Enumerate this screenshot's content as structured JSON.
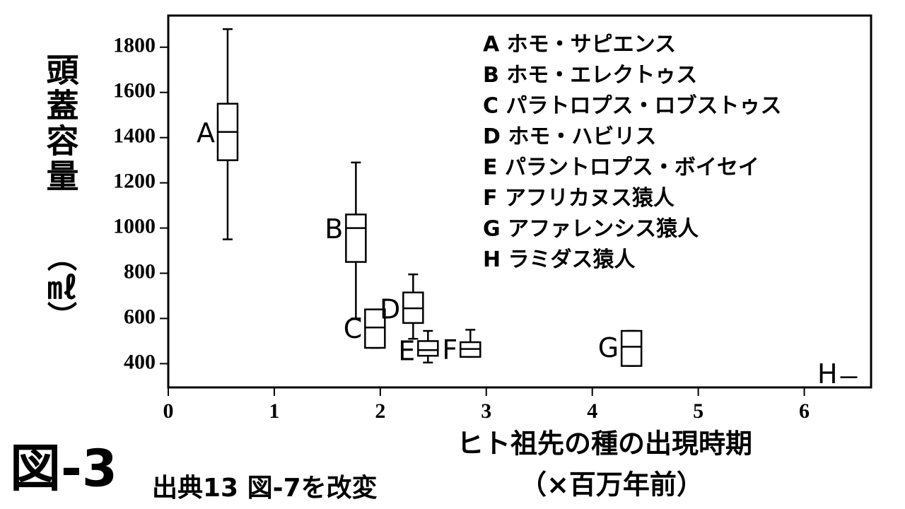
{
  "chart_data": {
    "type": "box",
    "ylabel": "頭蓋容量",
    "ylabel_unit": "（㎖）",
    "xlabel": "ヒト祖先の種の出現時期",
    "xlabel_unit": "（×百万年前）",
    "figure_label": "図-3",
    "source": "出典13 図-7を改変",
    "xlim": [
      0,
      6.63
    ],
    "xticks": [
      0,
      1,
      2,
      3,
      4,
      5,
      6
    ],
    "ylim": [
      295,
      1940
    ],
    "yticks": [
      400,
      600,
      800,
      1000,
      1200,
      1400,
      1600,
      1800
    ],
    "boxes": [
      {
        "label": "A",
        "x": 0.56,
        "min": 950,
        "q1": 1300,
        "median": 1425,
        "q3": 1550,
        "max": 1880
      },
      {
        "label": "B",
        "x": 1.77,
        "min": 600,
        "q1": 850,
        "median": 1000,
        "q3": 1060,
        "max": 1290
      },
      {
        "label": "C",
        "x": 1.95,
        "min": 470,
        "q1": 470,
        "median": 560,
        "q3": 640,
        "max": 640
      },
      {
        "label": "D",
        "x": 2.31,
        "min": 510,
        "q1": 580,
        "median": 645,
        "q3": 715,
        "max": 795
      },
      {
        "label": "E",
        "x": 2.45,
        "min": 405,
        "q1": 435,
        "median": 460,
        "q3": 500,
        "max": 545
      },
      {
        "label": "F",
        "x": 2.85,
        "min": 430,
        "q1": 430,
        "median": 465,
        "q3": 495,
        "max": 550
      },
      {
        "label": "G",
        "x": 4.37,
        "min": 390,
        "q1": 390,
        "median": 475,
        "q3": 545,
        "max": 545
      }
    ],
    "points": [
      {
        "label": "H",
        "x": 6.42,
        "value": 340
      }
    ],
    "legend": [
      "A ホモ・サピエンス",
      "B ホモ・エレクトゥス",
      "C パラトロプス・ロブストゥス",
      "D ホモ・ハビリス",
      "E パラントロプス・ボイセイ",
      "F アフリカヌス猿人",
      "G アファレンシス猿人",
      "H ラミダス猿人"
    ]
  }
}
